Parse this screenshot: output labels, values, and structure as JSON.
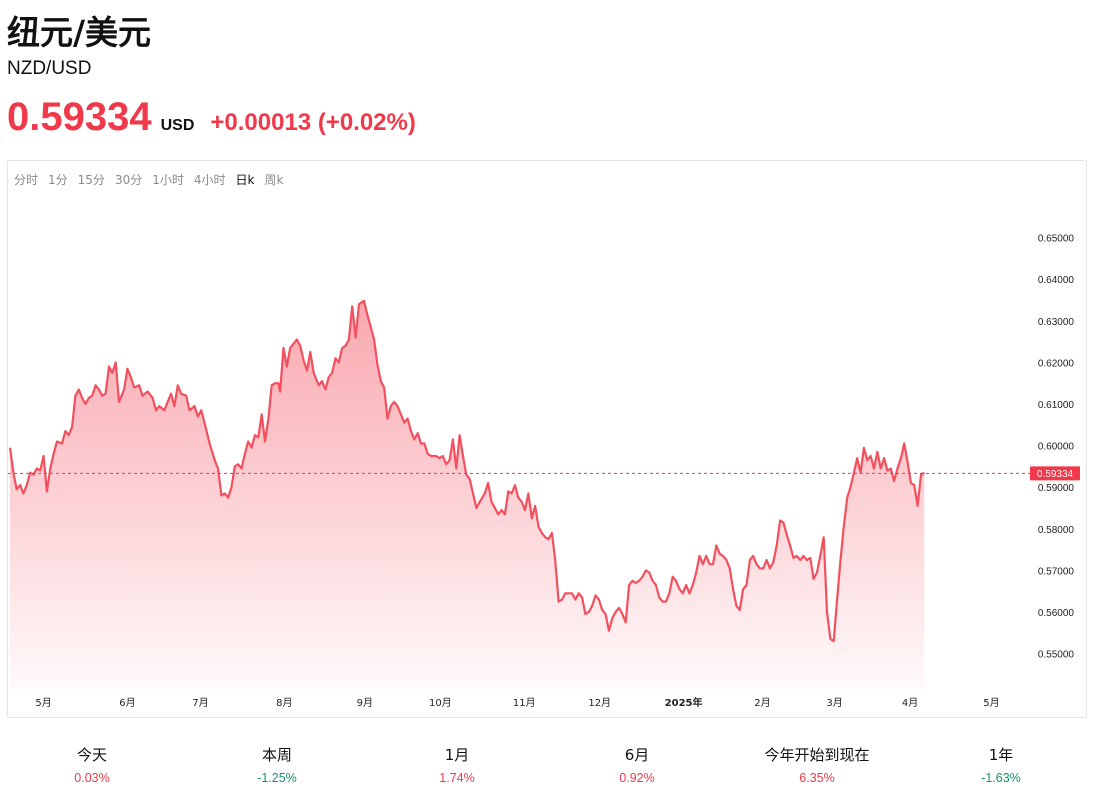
{
  "header": {
    "title": "纽元/美元",
    "symbol": "NZD/USD",
    "price": "0.59334",
    "currency": "USD",
    "change": "+0.00013 (+0.02%)"
  },
  "colors": {
    "up": "#f0394a",
    "down": "#19916e",
    "line": "#f2505f"
  },
  "tabs": [
    {
      "label": "分时",
      "active": false
    },
    {
      "label": "1分",
      "active": false
    },
    {
      "label": "15分",
      "active": false
    },
    {
      "label": "30分",
      "active": false
    },
    {
      "label": "1小时",
      "active": false
    },
    {
      "label": "4小时",
      "active": false
    },
    {
      "label": "日k",
      "active": true
    },
    {
      "label": "周k",
      "active": false
    }
  ],
  "periods": [
    {
      "label": "今天",
      "value": "0.03%",
      "direction": "up"
    },
    {
      "label": "本周",
      "value": "-1.25%",
      "direction": "down"
    },
    {
      "label": "1月",
      "value": "1.74%",
      "direction": "up"
    },
    {
      "label": "6月",
      "value": "0.92%",
      "direction": "up"
    },
    {
      "label": "今年开始到现在",
      "value": "6.35%",
      "direction": "up"
    },
    {
      "label": "1年",
      "value": "-1.63%",
      "direction": "down"
    }
  ],
  "chart_data": {
    "type": "area",
    "x_ticks": [
      {
        "label": "5月",
        "x": 1.4
      },
      {
        "label": "6月",
        "x": 2.4
      },
      {
        "label": "7月",
        "x": 3.27
      },
      {
        "label": "8月",
        "x": 4.27
      },
      {
        "label": "9月",
        "x": 5.23
      },
      {
        "label": "10月",
        "x": 6.13
      },
      {
        "label": "11月",
        "x": 7.13
      },
      {
        "label": "12月",
        "x": 8.03
      },
      {
        "label": "2025年",
        "x": 9.03,
        "bold": true
      },
      {
        "label": "2月",
        "x": 9.97
      },
      {
        "label": "3月",
        "x": 10.83
      },
      {
        "label": "4月",
        "x": 11.73
      },
      {
        "label": "5月",
        "x": 12.7
      }
    ],
    "y_ticks": [
      "0.55000",
      "0.56000",
      "0.57000",
      "0.58000",
      "0.59000",
      "0.60000",
      "0.61000",
      "0.62000",
      "0.63000",
      "0.64000",
      "0.65000"
    ],
    "ylim": [
      0.5415,
      0.6588
    ],
    "xlim": [
      1.0,
      13.1
    ],
    "current_value": 0.59334,
    "current_label": "0.59334",
    "points": [
      [
        1.0,
        0.5995
      ],
      [
        1.04,
        0.5935
      ],
      [
        1.08,
        0.5895
      ],
      [
        1.12,
        0.5905
      ],
      [
        1.16,
        0.5885
      ],
      [
        1.2,
        0.5905
      ],
      [
        1.24,
        0.5935
      ],
      [
        1.28,
        0.593
      ],
      [
        1.32,
        0.5945
      ],
      [
        1.36,
        0.594
      ],
      [
        1.4,
        0.5975
      ],
      [
        1.44,
        0.589
      ],
      [
        1.48,
        0.5945
      ],
      [
        1.52,
        0.598
      ],
      [
        1.56,
        0.601
      ],
      [
        1.62,
        0.6005
      ],
      [
        1.66,
        0.6035
      ],
      [
        1.7,
        0.6025
      ],
      [
        1.74,
        0.6045
      ],
      [
        1.78,
        0.612
      ],
      [
        1.82,
        0.6135
      ],
      [
        1.86,
        0.6115
      ],
      [
        1.9,
        0.61
      ],
      [
        1.94,
        0.6115
      ],
      [
        1.98,
        0.612
      ],
      [
        2.02,
        0.6145
      ],
      [
        2.06,
        0.6135
      ],
      [
        2.1,
        0.612
      ],
      [
        2.14,
        0.6125
      ],
      [
        2.18,
        0.619
      ],
      [
        2.22,
        0.6175
      ],
      [
        2.26,
        0.62
      ],
      [
        2.3,
        0.6105
      ],
      [
        2.36,
        0.6135
      ],
      [
        2.4,
        0.6185
      ],
      [
        2.44,
        0.6165
      ],
      [
        2.48,
        0.614
      ],
      [
        2.54,
        0.6145
      ],
      [
        2.58,
        0.612
      ],
      [
        2.64,
        0.613
      ],
      [
        2.7,
        0.6115
      ],
      [
        2.74,
        0.6085
      ],
      [
        2.78,
        0.6095
      ],
      [
        2.84,
        0.6085
      ],
      [
        2.88,
        0.6105
      ],
      [
        2.92,
        0.6125
      ],
      [
        2.96,
        0.6095
      ],
      [
        3.0,
        0.6145
      ],
      [
        3.04,
        0.6125
      ],
      [
        3.1,
        0.612
      ],
      [
        3.14,
        0.6085
      ],
      [
        3.2,
        0.6095
      ],
      [
        3.24,
        0.607
      ],
      [
        3.28,
        0.6085
      ],
      [
        3.33,
        0.6045
      ],
      [
        3.38,
        0.6005
      ],
      [
        3.44,
        0.5965
      ],
      [
        3.48,
        0.5945
      ],
      [
        3.52,
        0.588
      ],
      [
        3.56,
        0.5885
      ],
      [
        3.6,
        0.5875
      ],
      [
        3.64,
        0.59
      ],
      [
        3.68,
        0.595
      ],
      [
        3.72,
        0.5955
      ],
      [
        3.76,
        0.5945
      ],
      [
        3.8,
        0.598
      ],
      [
        3.84,
        0.601
      ],
      [
        3.88,
        0.5995
      ],
      [
        3.92,
        0.6025
      ],
      [
        3.96,
        0.602
      ],
      [
        4.0,
        0.6075
      ],
      [
        4.04,
        0.601
      ],
      [
        4.08,
        0.6065
      ],
      [
        4.12,
        0.6145
      ],
      [
        4.16,
        0.615
      ],
      [
        4.2,
        0.615
      ],
      [
        4.22,
        0.613
      ],
      [
        4.26,
        0.6235
      ],
      [
        4.3,
        0.619
      ],
      [
        4.34,
        0.6235
      ],
      [
        4.38,
        0.6245
      ],
      [
        4.42,
        0.6255
      ],
      [
        4.46,
        0.624
      ],
      [
        4.5,
        0.6205
      ],
      [
        4.54,
        0.618
      ],
      [
        4.58,
        0.6225
      ],
      [
        4.62,
        0.6175
      ],
      [
        4.68,
        0.6145
      ],
      [
        4.72,
        0.6155
      ],
      [
        4.76,
        0.6135
      ],
      [
        4.8,
        0.6165
      ],
      [
        4.84,
        0.6175
      ],
      [
        4.88,
        0.621
      ],
      [
        4.92,
        0.62
      ],
      [
        4.96,
        0.6235
      ],
      [
        5.0,
        0.624
      ],
      [
        5.04,
        0.6255
      ],
      [
        5.08,
        0.6335
      ],
      [
        5.12,
        0.626
      ],
      [
        5.16,
        0.634
      ],
      [
        5.22,
        0.6348
      ],
      [
        5.26,
        0.6315
      ],
      [
        5.3,
        0.6285
      ],
      [
        5.34,
        0.6255
      ],
      [
        5.38,
        0.6195
      ],
      [
        5.42,
        0.6155
      ],
      [
        5.46,
        0.614
      ],
      [
        5.5,
        0.6065
      ],
      [
        5.54,
        0.6095
      ],
      [
        5.58,
        0.6105
      ],
      [
        5.62,
        0.6095
      ],
      [
        5.66,
        0.6075
      ],
      [
        5.7,
        0.6055
      ],
      [
        5.74,
        0.6065
      ],
      [
        5.78,
        0.6035
      ],
      [
        5.82,
        0.6015
      ],
      [
        5.86,
        0.603
      ],
      [
        5.9,
        0.6005
      ],
      [
        5.94,
        0.6005
      ],
      [
        5.98,
        0.598
      ],
      [
        6.02,
        0.5975
      ],
      [
        6.08,
        0.5975
      ],
      [
        6.12,
        0.597
      ],
      [
        6.16,
        0.5975
      ],
      [
        6.2,
        0.5955
      ],
      [
        6.24,
        0.5965
      ],
      [
        6.28,
        0.6015
      ],
      [
        6.32,
        0.5945
      ],
      [
        6.36,
        0.6025
      ],
      [
        6.4,
        0.5975
      ],
      [
        6.44,
        0.593
      ],
      [
        6.48,
        0.592
      ],
      [
        6.52,
        0.5885
      ],
      [
        6.56,
        0.585
      ],
      [
        6.6,
        0.5865
      ],
      [
        6.66,
        0.5885
      ],
      [
        6.7,
        0.591
      ],
      [
        6.74,
        0.5865
      ],
      [
        6.78,
        0.585
      ],
      [
        6.82,
        0.5835
      ],
      [
        6.86,
        0.5845
      ],
      [
        6.9,
        0.5835
      ],
      [
        6.94,
        0.589
      ],
      [
        6.98,
        0.5885
      ],
      [
        7.02,
        0.5905
      ],
      [
        7.06,
        0.5875
      ],
      [
        7.1,
        0.5865
      ],
      [
        7.14,
        0.5845
      ],
      [
        7.18,
        0.5885
      ],
      [
        7.22,
        0.5825
      ],
      [
        7.26,
        0.5855
      ],
      [
        7.3,
        0.5805
      ],
      [
        7.34,
        0.579
      ],
      [
        7.38,
        0.578
      ],
      [
        7.42,
        0.5775
      ],
      [
        7.46,
        0.579
      ],
      [
        7.5,
        0.5725
      ],
      [
        7.54,
        0.5625
      ],
      [
        7.58,
        0.563
      ],
      [
        7.62,
        0.5645
      ],
      [
        7.66,
        0.5645
      ],
      [
        7.7,
        0.5645
      ],
      [
        7.74,
        0.563
      ],
      [
        7.78,
        0.5645
      ],
      [
        7.82,
        0.5635
      ],
      [
        7.86,
        0.5595
      ],
      [
        7.9,
        0.56
      ],
      [
        7.94,
        0.5615
      ],
      [
        7.98,
        0.564
      ],
      [
        8.02,
        0.563
      ],
      [
        8.06,
        0.5605
      ],
      [
        8.1,
        0.5595
      ],
      [
        8.14,
        0.5555
      ],
      [
        8.18,
        0.5585
      ],
      [
        8.22,
        0.56
      ],
      [
        8.26,
        0.561
      ],
      [
        8.3,
        0.5595
      ],
      [
        8.34,
        0.5575
      ],
      [
        8.38,
        0.5665
      ],
      [
        8.42,
        0.5675
      ],
      [
        8.46,
        0.567
      ],
      [
        8.5,
        0.5675
      ],
      [
        8.54,
        0.5685
      ],
      [
        8.58,
        0.57
      ],
      [
        8.62,
        0.5695
      ],
      [
        8.66,
        0.5675
      ],
      [
        8.7,
        0.5665
      ],
      [
        8.74,
        0.5635
      ],
      [
        8.78,
        0.5625
      ],
      [
        8.82,
        0.5625
      ],
      [
        8.86,
        0.5645
      ],
      [
        8.9,
        0.5685
      ],
      [
        8.94,
        0.5675
      ],
      [
        8.98,
        0.5655
      ],
      [
        9.02,
        0.5645
      ],
      [
        9.06,
        0.5665
      ],
      [
        9.1,
        0.5645
      ],
      [
        9.14,
        0.5665
      ],
      [
        9.18,
        0.5695
      ],
      [
        9.22,
        0.5735
      ],
      [
        9.26,
        0.5715
      ],
      [
        9.3,
        0.5735
      ],
      [
        9.34,
        0.5715
      ],
      [
        9.38,
        0.5715
      ],
      [
        9.42,
        0.576
      ],
      [
        9.46,
        0.574
      ],
      [
        9.5,
        0.5735
      ],
      [
        9.54,
        0.5725
      ],
      [
        9.58,
        0.5705
      ],
      [
        9.62,
        0.5655
      ],
      [
        9.66,
        0.5615
      ],
      [
        9.7,
        0.5605
      ],
      [
        9.74,
        0.5655
      ],
      [
        9.78,
        0.5665
      ],
      [
        9.82,
        0.5725
      ],
      [
        9.86,
        0.5735
      ],
      [
        9.9,
        0.5715
      ],
      [
        9.94,
        0.5705
      ],
      [
        9.98,
        0.5705
      ],
      [
        10.02,
        0.5725
      ],
      [
        10.06,
        0.5705
      ],
      [
        10.1,
        0.572
      ],
      [
        10.14,
        0.576
      ],
      [
        10.18,
        0.582
      ],
      [
        10.22,
        0.5815
      ],
      [
        10.26,
        0.5785
      ],
      [
        10.3,
        0.576
      ],
      [
        10.34,
        0.573
      ],
      [
        10.38,
        0.5735
      ],
      [
        10.42,
        0.5725
      ],
      [
        10.46,
        0.5735
      ],
      [
        10.5,
        0.5725
      ],
      [
        10.54,
        0.573
      ],
      [
        10.58,
        0.568
      ],
      [
        10.62,
        0.5695
      ],
      [
        10.66,
        0.5735
      ],
      [
        10.7,
        0.578
      ],
      [
        10.74,
        0.56
      ],
      [
        10.78,
        0.5535
      ],
      [
        10.82,
        0.553
      ],
      [
        10.86,
        0.563
      ],
      [
        10.9,
        0.5725
      ],
      [
        10.94,
        0.5805
      ],
      [
        10.98,
        0.5875
      ],
      [
        11.02,
        0.59
      ],
      [
        11.06,
        0.5935
      ],
      [
        11.1,
        0.597
      ],
      [
        11.14,
        0.5935
      ],
      [
        11.18,
        0.5995
      ],
      [
        11.22,
        0.5965
      ],
      [
        11.26,
        0.5975
      ],
      [
        11.3,
        0.5945
      ],
      [
        11.34,
        0.5985
      ],
      [
        11.38,
        0.5945
      ],
      [
        11.42,
        0.597
      ],
      [
        11.46,
        0.594
      ],
      [
        11.5,
        0.5945
      ],
      [
        11.54,
        0.5915
      ],
      [
        11.58,
        0.5945
      ],
      [
        11.62,
        0.597
      ],
      [
        11.66,
        0.6005
      ],
      [
        11.7,
        0.596
      ],
      [
        11.74,
        0.591
      ],
      [
        11.78,
        0.5905
      ],
      [
        11.82,
        0.5855
      ],
      [
        11.86,
        0.593
      ],
      [
        11.9,
        0.5935
      ]
    ]
  }
}
